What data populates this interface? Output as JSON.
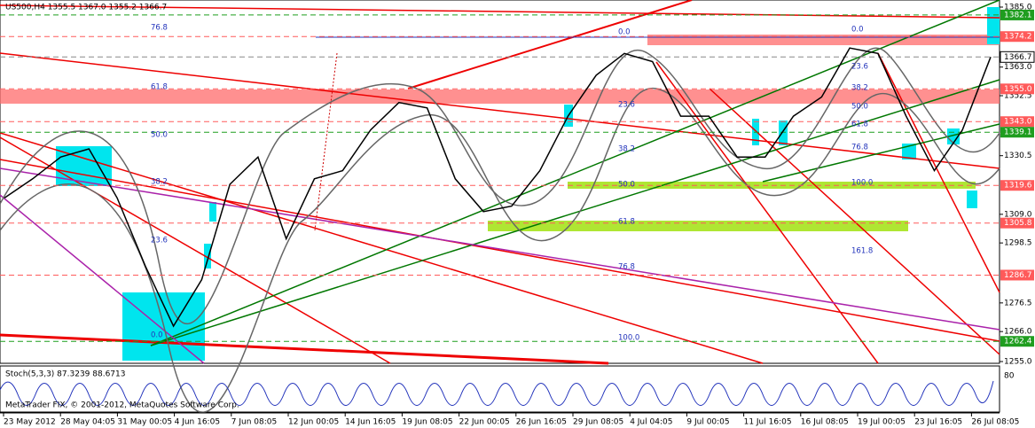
{
  "header": "US500,H4  1355.5 1367.0 1355.2 1366.7",
  "indicator": "Stoch(5,3,3) 87.3239 88.6713",
  "copyright": "MetaTrader FIX, © 2001-2012, MetaQuotes Software Corp.",
  "ylim": [
    1255.0,
    1385.0
  ],
  "yticks": [
    {
      "value": 1385.0,
      "label": "1385.0"
    },
    {
      "value": 1363.0,
      "label": "1363.0"
    },
    {
      "value": 1352.5,
      "label": "1352.5"
    },
    {
      "value": 1330.5,
      "label": "1330.5"
    },
    {
      "value": 1309.0,
      "label": "1309.0"
    },
    {
      "value": 1298.5,
      "label": "1298.5"
    },
    {
      "value": 1276.5,
      "label": "1276.5"
    },
    {
      "value": 1266.0,
      "label": "1266.0"
    },
    {
      "value": 1255.0,
      "label": "1255.0"
    }
  ],
  "levels": [
    {
      "value": 1382.1,
      "label": "1382.1",
      "color": "#1f9d1f"
    },
    {
      "value": 1374.2,
      "label": "1374.2",
      "color": "#ff5a5a"
    },
    {
      "value": 1366.7,
      "label": "1366.7",
      "color": "#ffffff"
    },
    {
      "value": 1355.0,
      "label": "1355.0",
      "color": "#ff5a5a"
    },
    {
      "value": 1343.0,
      "label": "1343.0",
      "color": "#ff5a5a"
    },
    {
      "value": 1339.1,
      "label": "1339.1",
      "color": "#1f9d1f"
    },
    {
      "value": 1319.6,
      "label": "1319.6",
      "color": "#ff5a5a"
    },
    {
      "value": 1305.8,
      "label": "1305.8",
      "color": "#ff5a5a"
    },
    {
      "value": 1286.7,
      "label": "1286.7",
      "color": "#ff5a5a"
    },
    {
      "value": 1262.4,
      "label": "1262.4",
      "color": "#1f9d1f"
    }
  ],
  "close": [
    1315,
    1322,
    1330,
    1333,
    1315,
    1290,
    1268,
    1285,
    1320,
    1330,
    1300,
    1322,
    1325,
    1340,
    1350,
    1348,
    1322,
    1310,
    1312,
    1325,
    1345,
    1360,
    1368,
    1365,
    1345,
    1345,
    1330,
    1330,
    1345,
    1352,
    1370,
    1368,
    1345,
    1325,
    1340,
    1366.7
  ],
  "fib_sets": [
    [
      "76.8",
      "61.8",
      "50.0",
      "38.2",
      "23.6",
      "0.0"
    ],
    [
      "0.0",
      "23.6",
      "38.2",
      "50.0",
      "61.8",
      "76.8",
      "100.0"
    ],
    [
      "0.0",
      "23.6",
      "38.2",
      "50.0",
      "61.8",
      "76.8",
      "100.0",
      "161.8"
    ]
  ],
  "stoch_ticks": [
    "80"
  ],
  "dates": [
    "23 May 2012",
    "28 May 04:05",
    "31 May 00:05",
    "4 Jun 16:05",
    "7 Jun 08:05",
    "12 Jun 00:05",
    "14 Jun 16:05",
    "19 Jun 08:05",
    "22 Jun 00:05",
    "26 Jun 16:05",
    "29 Jun 08:05",
    "4 Jul 04:05",
    "9 Jul 00:05",
    "11 Jul 16:05",
    "16 Jul 08:05",
    "19 Jul 00:05",
    "23 Jul 16:05",
    "26 Jul 08:05"
  ]
}
